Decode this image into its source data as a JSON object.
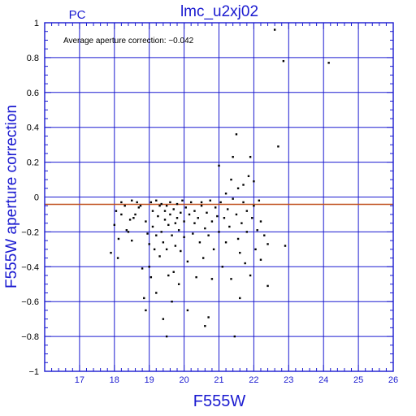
{
  "chart_data": {
    "type": "scatter",
    "title": "lmc_u2xj02",
    "subtitle": "PC",
    "annotation": "Average aperture correction: −0.042",
    "xlabel": "F555W",
    "ylabel": "F555W aperture correction",
    "xlim": [
      16,
      26
    ],
    "ylim": [
      -1,
      1
    ],
    "xticks": [
      "17",
      "18",
      "19",
      "20",
      "21",
      "22",
      "23",
      "24",
      "25",
      "26"
    ],
    "yticks": [
      "−1",
      "−0.8",
      "−0.6",
      "−0.4",
      "−0.2",
      "0",
      "0.2",
      "0.4",
      "0.6",
      "0.8",
      "1"
    ],
    "average_line": -0.042,
    "grid": true,
    "colors": {
      "axis": "#1a1ad0",
      "grid": "#1a1ad0",
      "points": "#000000",
      "average_line": "#c0501e"
    },
    "points": [
      [
        17.9,
        -0.32
      ],
      [
        18.0,
        -0.16
      ],
      [
        18.05,
        -0.08
      ],
      [
        18.1,
        -0.35
      ],
      [
        18.12,
        -0.24
      ],
      [
        18.2,
        -0.1
      ],
      [
        18.2,
        -0.03
      ],
      [
        18.3,
        -0.05
      ],
      [
        18.35,
        -0.19
      ],
      [
        18.4,
        -0.2
      ],
      [
        18.45,
        -0.13
      ],
      [
        18.5,
        -0.25
      ],
      [
        18.5,
        -0.02
      ],
      [
        18.55,
        -0.12
      ],
      [
        18.6,
        -0.1
      ],
      [
        18.65,
        -0.03
      ],
      [
        18.7,
        -0.06
      ],
      [
        18.75,
        -0.05
      ],
      [
        18.8,
        -0.41
      ],
      [
        18.85,
        -0.58
      ],
      [
        18.9,
        -0.65
      ],
      [
        18.9,
        -0.14
      ],
      [
        18.95,
        -0.21
      ],
      [
        19.0,
        -0.4
      ],
      [
        19.0,
        -0.27
      ],
      [
        19.05,
        -0.46
      ],
      [
        19.05,
        -0.03
      ],
      [
        19.1,
        -0.17
      ],
      [
        19.1,
        -0.08
      ],
      [
        19.15,
        -0.3
      ],
      [
        19.2,
        -0.55
      ],
      [
        19.2,
        -0.22
      ],
      [
        19.2,
        -0.02
      ],
      [
        19.25,
        -0.11
      ],
      [
        19.3,
        -0.05
      ],
      [
        19.3,
        -0.34
      ],
      [
        19.35,
        -0.2
      ],
      [
        19.35,
        -0.04
      ],
      [
        19.4,
        -0.7
      ],
      [
        19.4,
        -0.26
      ],
      [
        19.45,
        -0.13
      ],
      [
        19.45,
        -0.08
      ],
      [
        19.5,
        -0.8
      ],
      [
        19.5,
        -0.3
      ],
      [
        19.5,
        -0.05
      ],
      [
        19.55,
        -0.45
      ],
      [
        19.55,
        -0.16
      ],
      [
        19.6,
        -0.1
      ],
      [
        19.6,
        -0.03
      ],
      [
        19.65,
        -0.6
      ],
      [
        19.65,
        -0.22
      ],
      [
        19.7,
        -0.43
      ],
      [
        19.7,
        -0.07
      ],
      [
        19.75,
        -0.15
      ],
      [
        19.75,
        -0.28
      ],
      [
        19.8,
        -0.12
      ],
      [
        19.8,
        -0.04
      ],
      [
        19.85,
        -0.5
      ],
      [
        19.85,
        -0.19
      ],
      [
        19.9,
        -0.09
      ],
      [
        19.9,
        -0.31
      ],
      [
        19.95,
        -0.02
      ],
      [
        20.0,
        -0.14
      ],
      [
        20.0,
        -0.23
      ],
      [
        20.05,
        -0.06
      ],
      [
        20.1,
        -0.37
      ],
      [
        20.1,
        -0.65
      ],
      [
        20.15,
        -0.1
      ],
      [
        20.2,
        -0.03
      ],
      [
        20.25,
        -0.21
      ],
      [
        20.3,
        -0.08
      ],
      [
        20.3,
        -0.15
      ],
      [
        20.35,
        -0.46
      ],
      [
        20.4,
        -0.12
      ],
      [
        20.45,
        -0.26
      ],
      [
        20.5,
        -0.03
      ],
      [
        20.5,
        -0.05
      ],
      [
        20.55,
        -0.35
      ],
      [
        20.6,
        -0.18
      ],
      [
        20.6,
        -0.74
      ],
      [
        20.65,
        -0.09
      ],
      [
        20.7,
        -0.69
      ],
      [
        20.7,
        -0.22
      ],
      [
        20.75,
        -0.02
      ],
      [
        20.8,
        -0.14
      ],
      [
        20.8,
        -0.47
      ],
      [
        20.85,
        -0.3
      ],
      [
        20.9,
        -0.06
      ],
      [
        20.95,
        -0.11
      ],
      [
        21.0,
        0.18
      ],
      [
        21.0,
        -0.2
      ],
      [
        21.05,
        -0.03
      ],
      [
        21.1,
        -0.4
      ],
      [
        21.15,
        -0.12
      ],
      [
        21.2,
        0.02
      ],
      [
        21.2,
        -0.26
      ],
      [
        21.25,
        -0.07
      ],
      [
        21.3,
        -0.17
      ],
      [
        21.35,
        0.1
      ],
      [
        21.35,
        -0.47
      ],
      [
        21.4,
        -0.01
      ],
      [
        21.4,
        0.23
      ],
      [
        21.45,
        -0.8
      ],
      [
        21.5,
        -0.1
      ],
      [
        21.5,
        0.36
      ],
      [
        21.55,
        0.05
      ],
      [
        21.55,
        -0.24
      ],
      [
        21.6,
        -0.32
      ],
      [
        21.6,
        -0.58
      ],
      [
        21.65,
        -0.15
      ],
      [
        21.7,
        0.07
      ],
      [
        21.7,
        -0.03
      ],
      [
        21.75,
        -0.38
      ],
      [
        21.8,
        -0.08
      ],
      [
        21.8,
        -0.2
      ],
      [
        21.85,
        0.12
      ],
      [
        21.9,
        0.23
      ],
      [
        21.9,
        -0.45
      ],
      [
        21.95,
        -0.12
      ],
      [
        22.0,
        0.09
      ],
      [
        22.0,
        -0.05
      ],
      [
        22.05,
        -0.3
      ],
      [
        22.1,
        -0.19
      ],
      [
        22.15,
        -0.02
      ],
      [
        22.2,
        -0.36
      ],
      [
        22.2,
        -0.14
      ],
      [
        22.3,
        -0.22
      ],
      [
        22.4,
        -0.51
      ],
      [
        22.4,
        -0.27
      ],
      [
        22.6,
        0.96
      ],
      [
        22.7,
        0.29
      ],
      [
        22.85,
        0.78
      ],
      [
        22.9,
        -0.28
      ],
      [
        24.15,
        0.77
      ]
    ]
  }
}
